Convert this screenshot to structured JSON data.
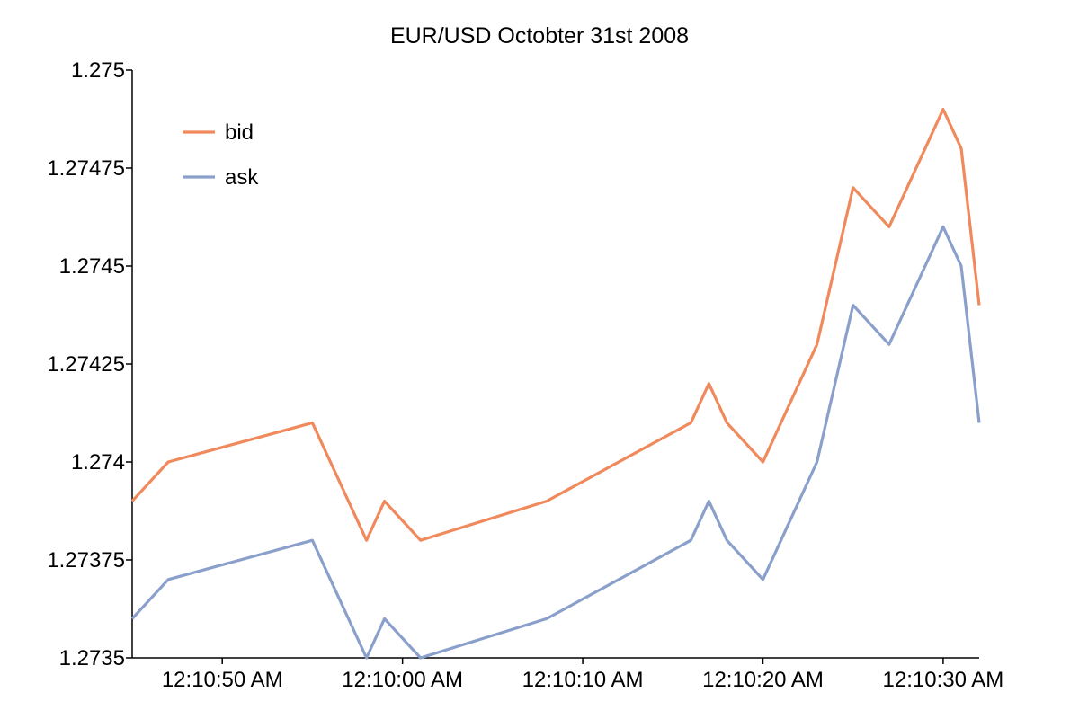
{
  "chart_data": {
    "type": "line",
    "title": "EUR/USD Octobter 31st 2008",
    "xlabel": "",
    "ylabel": "",
    "ylim": [
      1.2735,
      1.275
    ],
    "y_ticks": [
      "1.275",
      "1.27475",
      "1.2745",
      "1.27425",
      "1.274",
      "1.27375",
      "1.2735"
    ],
    "y_tick_values": [
      1.275,
      1.27475,
      1.2745,
      1.27425,
      1.274,
      1.27375,
      1.2735
    ],
    "x_ticks": [
      "12:10:50 AM",
      "12:10:00 AM",
      "12:10:10 AM",
      "12:10:20 AM",
      "12:10:30 AM"
    ],
    "x_tick_values": [
      -15,
      -5,
      5,
      15,
      25
    ],
    "xlim": [
      -20,
      27
    ],
    "legend": "top-left",
    "grid": false,
    "series": [
      {
        "name": "bid",
        "color": "#f0895c",
        "x": [
          -20,
          -18,
          -10,
          -7,
          -6,
          -4,
          3,
          11,
          12,
          13,
          15,
          18,
          20,
          22,
          24,
          25,
          26,
          27
        ],
        "y": [
          1.2739,
          1.274,
          1.2741,
          1.2738,
          1.2739,
          1.2738,
          1.2739,
          1.2741,
          1.2742,
          1.2741,
          1.274,
          1.2743,
          1.2747,
          1.2746,
          1.2748,
          1.2749,
          1.2748,
          1.2744
        ]
      },
      {
        "name": "ask",
        "color": "#8aa0cb",
        "x": [
          -20,
          -18,
          -10,
          -7,
          -6,
          -4,
          3,
          11,
          12,
          13,
          15,
          18,
          20,
          22,
          24,
          25,
          26,
          27
        ],
        "y": [
          1.2736,
          1.2737,
          1.2738,
          1.2735,
          1.2736,
          1.2735,
          1.2736,
          1.2738,
          1.2739,
          1.2738,
          1.2737,
          1.274,
          1.2744,
          1.2743,
          1.2745,
          1.2746,
          1.2745,
          1.2741
        ]
      }
    ]
  }
}
